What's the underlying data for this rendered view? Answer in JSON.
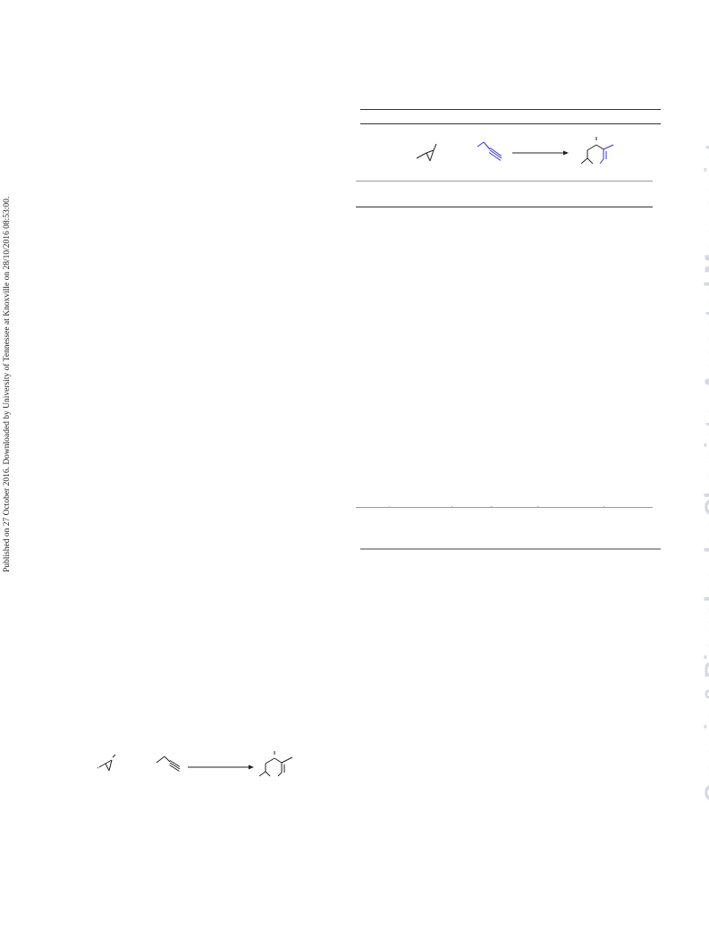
{
  "margin_note": {
    "text": "Published on 27 October 2016. Downloaded by University of Tennessee at Knoxville on 28/10/2016 08:53:00."
  },
  "watermark": {
    "text": "Organic & Biomolecular Chemistry Accepted Manuscript",
    "color": "#d6d8e2"
  },
  "colors": {
    "ink": "#222222",
    "highlight_bond": "#3333cc"
  },
  "schemes": [
    {
      "id": "table-header-scheme",
      "components": [
        "cyclopropane-reactant",
        "alkyne-reactant",
        "reaction-arrow",
        "cyclohexene-product"
      ]
    },
    {
      "id": "bottom-scheme",
      "components": [
        "cyclopropane-reactant",
        "alkyne-reactant",
        "reaction-arrow",
        "cyclohexene-product"
      ]
    }
  ]
}
